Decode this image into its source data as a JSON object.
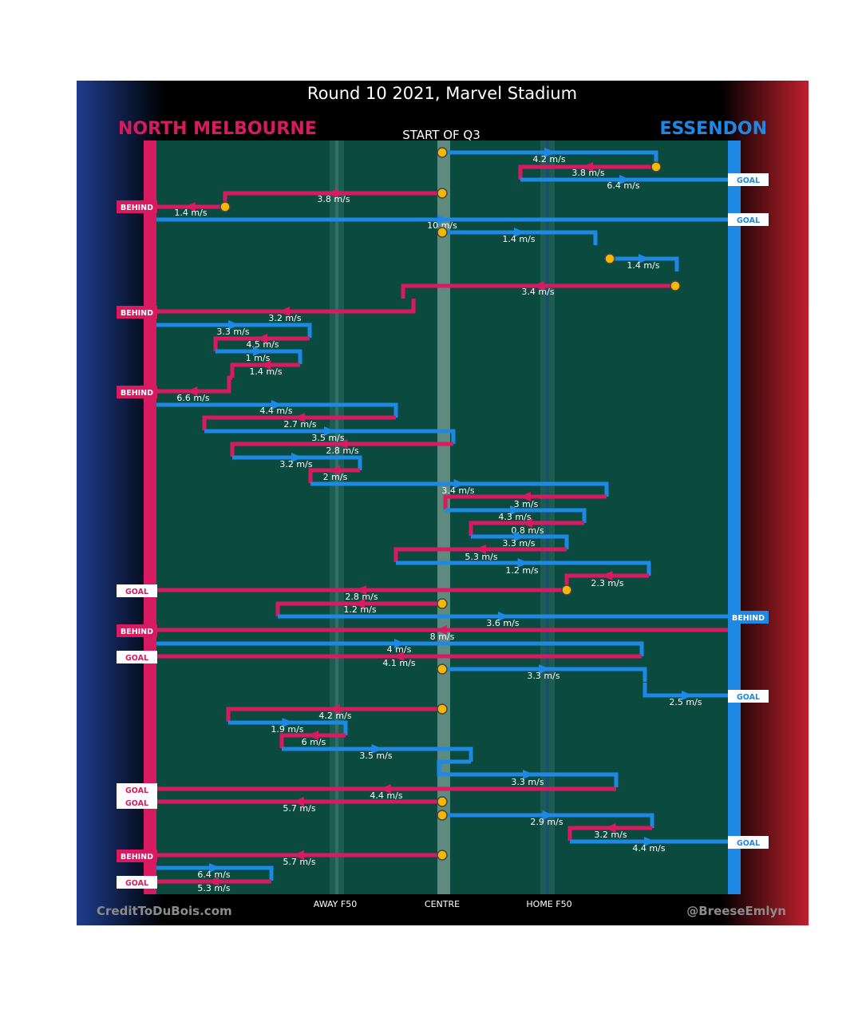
{
  "title": "Round 10 2021, Marvel Stadium",
  "teams": {
    "left": {
      "name": "NORTH MELBOURNE",
      "color": "#d81b60"
    },
    "right": {
      "name": "ESSENDON",
      "color": "#1e88e5"
    }
  },
  "quarter_label": "START OF Q3",
  "credits": {
    "left": "CreditToDuBois.com",
    "right": "@BreeseEmlyn"
  },
  "colors": {
    "field": "#0b4a3f",
    "north": "#d81b60",
    "essendon": "#1e88e5",
    "marker": "#f5b800",
    "background": "#000000"
  },
  "chart_data": {
    "type": "line",
    "description_axis": "field position",
    "x_axis_labels": [
      "AWAY F50",
      "CENTRE",
      "HOME F50"
    ],
    "y_axis": "time (downward)",
    "chains": [
      {
        "team": "Essendon",
        "speed": "4.2 m/s",
        "from": "CENTRE",
        "to": "Essendon 54",
        "start_marker": true
      },
      {
        "team": "North Melbourne",
        "speed": "3.8 m/s",
        "from": "Essendon 54",
        "to": "Essendon 20",
        "start_marker": true
      },
      {
        "team": "Essendon",
        "speed": "6.4 m/s",
        "from": "Essendon 20",
        "outcome": "GOAL"
      },
      {
        "team": "North Melbourne",
        "speed": "3.8 m/s",
        "from": "CENTRE",
        "start_marker": true
      },
      {
        "team": "North Melbourne",
        "speed": "1.4 m/s",
        "outcome": "BEHIND",
        "start_marker": true
      },
      {
        "team": "Essendon",
        "speed": "10 m/s",
        "outcome": "GOAL"
      },
      {
        "team": "Essendon",
        "speed": "1.4 m/s",
        "from": "CENTRE",
        "start_marker": true
      },
      {
        "team": "Essendon",
        "speed": "1.4 m/s",
        "start_marker": true
      },
      {
        "team": "North Melbourne",
        "speed": "3.4 m/s",
        "start_marker": true
      },
      {
        "team": "North Melbourne",
        "speed": "3.2 m/s",
        "outcome": "BEHIND"
      },
      {
        "team": "Essendon",
        "speed": "3.3 m/s"
      },
      {
        "team": "North Melbourne",
        "speed": "4.5 m/s"
      },
      {
        "team": "Essendon",
        "speed": "1 m/s"
      },
      {
        "team": "North Melbourne",
        "speed": "1.4 m/s"
      },
      {
        "team": "North Melbourne",
        "speed": "6.6 m/s",
        "outcome": "BEHIND"
      },
      {
        "team": "Essendon",
        "speed": "4.4 m/s"
      },
      {
        "team": "North Melbourne",
        "speed": "2.7 m/s"
      },
      {
        "team": "Essendon",
        "speed": "3.5 m/s"
      },
      {
        "team": "North Melbourne",
        "speed": "2.8 m/s"
      },
      {
        "team": "Essendon",
        "speed": "3.2 m/s"
      },
      {
        "team": "North Melbourne",
        "speed": "2 m/s"
      },
      {
        "team": "Essendon",
        "speed": "3.4 m/s"
      },
      {
        "team": "North Melbourne",
        "speed": "3 m/s"
      },
      {
        "team": "Essendon",
        "speed": "4.3 m/s"
      },
      {
        "team": "North Melbourne",
        "speed": "0.8 m/s"
      },
      {
        "team": "Essendon",
        "speed": "3.3 m/s"
      },
      {
        "team": "North Melbourne",
        "speed": "5.3 m/s"
      },
      {
        "team": "Essendon",
        "speed": "1.2 m/s"
      },
      {
        "team": "North Melbourne",
        "speed": "2.3 m/s"
      },
      {
        "team": "North Melbourne",
        "speed": "2.8 m/s",
        "outcome": "GOAL",
        "start_marker": true
      },
      {
        "team": "North Melbourne",
        "speed": "1.2 m/s",
        "start_marker": true
      },
      {
        "team": "Essendon",
        "speed": "3.6 m/s",
        "outcome": "BEHIND"
      },
      {
        "team": "North Melbourne",
        "speed": "8 m/s",
        "outcome": "BEHIND"
      },
      {
        "team": "Essendon",
        "speed": "4 m/s"
      },
      {
        "team": "North Melbourne",
        "speed": "4.1 m/s",
        "outcome": "GOAL"
      },
      {
        "team": "Essendon",
        "speed": "3.3 m/s",
        "start_marker": true
      },
      {
        "team": "Essendon",
        "speed": "2.5 m/s",
        "outcome": "GOAL"
      },
      {
        "team": "North Melbourne",
        "speed": "4.2 m/s",
        "start_marker": true
      },
      {
        "team": "Essendon",
        "speed": "1.9 m/s"
      },
      {
        "team": "North Melbourne",
        "speed": "6 m/s"
      },
      {
        "team": "Essendon",
        "speed": "3.5 m/s"
      },
      {
        "team": "Essendon",
        "speed": "3.3 m/s"
      },
      {
        "team": "North Melbourne",
        "speed": "4.4 m/s",
        "outcome": "GOAL"
      },
      {
        "team": "North Melbourne",
        "speed": "5.7 m/s",
        "outcome": "GOAL",
        "start_marker": true
      },
      {
        "team": "Essendon",
        "speed": "2.9 m/s",
        "start_marker": true
      },
      {
        "team": "North Melbourne",
        "speed": "3.2 m/s"
      },
      {
        "team": "Essendon",
        "speed": "4.4 m/s",
        "outcome": "GOAL"
      },
      {
        "team": "North Melbourne",
        "speed": "5.7 m/s",
        "outcome": "BEHIND",
        "start_marker": true
      },
      {
        "team": "Essendon",
        "speed": "6.4 m/s"
      },
      {
        "team": "North Melbourne",
        "speed": "5.3 m/s",
        "outcome": "GOAL"
      }
    ]
  }
}
